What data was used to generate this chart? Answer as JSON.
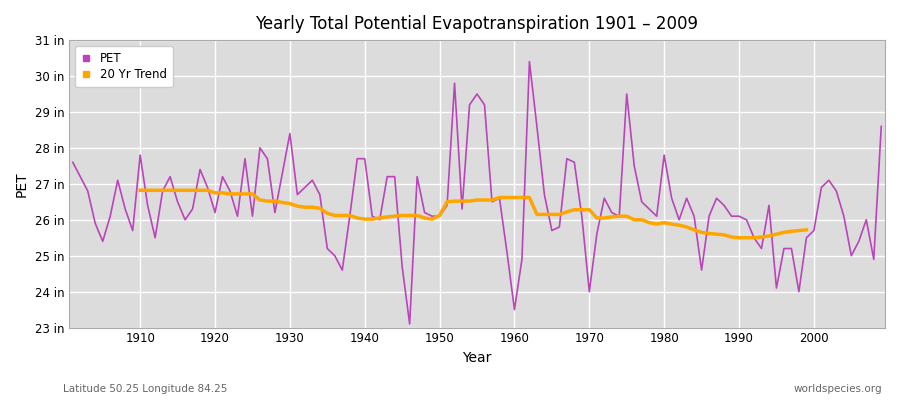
{
  "title": "Yearly Total Potential Evapotranspiration 1901 – 2009",
  "xlabel": "Year",
  "ylabel": "PET",
  "subtitle_left": "Latitude 50.25 Longitude 84.25",
  "subtitle_right": "worldspecies.org",
  "pet_color": "#BB44BB",
  "trend_color": "#FFA500",
  "fig_background_color": "#FFFFFF",
  "plot_background_color": "#DCDCDC",
  "grid_color": "#FFFFFF",
  "ylim_bottom": 23.0,
  "ylim_top": 31.0,
  "yticks": [
    23,
    24,
    25,
    26,
    27,
    28,
    29,
    30,
    31
  ],
  "ytick_labels": [
    "23 in",
    "24 in",
    "25 in",
    "26 in",
    "27 in",
    "28 in",
    "29 in",
    "30 in",
    "31 in"
  ],
  "xticks": [
    1910,
    1920,
    1930,
    1940,
    1950,
    1960,
    1970,
    1980,
    1990,
    2000
  ],
  "years": [
    1901,
    1902,
    1903,
    1904,
    1905,
    1906,
    1907,
    1908,
    1909,
    1910,
    1911,
    1912,
    1913,
    1914,
    1915,
    1916,
    1917,
    1918,
    1919,
    1920,
    1921,
    1922,
    1923,
    1924,
    1925,
    1926,
    1927,
    1928,
    1929,
    1930,
    1931,
    1932,
    1933,
    1934,
    1935,
    1936,
    1937,
    1938,
    1939,
    1940,
    1941,
    1942,
    1943,
    1944,
    1945,
    1946,
    1947,
    1948,
    1949,
    1950,
    1951,
    1952,
    1953,
    1954,
    1955,
    1956,
    1957,
    1958,
    1959,
    1960,
    1961,
    1962,
    1963,
    1964,
    1965,
    1966,
    1967,
    1968,
    1969,
    1970,
    1971,
    1972,
    1973,
    1974,
    1975,
    1976,
    1977,
    1978,
    1979,
    1980,
    1981,
    1982,
    1983,
    1984,
    1985,
    1986,
    1987,
    1988,
    1989,
    1990,
    1991,
    1992,
    1993,
    1994,
    1995,
    1996,
    1997,
    1998,
    1999,
    2000,
    2001,
    2002,
    2003,
    2004,
    2005,
    2006,
    2007,
    2008,
    2009
  ],
  "pet_values": [
    27.6,
    27.2,
    26.8,
    25.9,
    25.4,
    26.1,
    27.1,
    26.3,
    25.7,
    27.8,
    26.4,
    25.5,
    26.8,
    27.2,
    26.5,
    26.0,
    26.3,
    27.4,
    26.9,
    26.2,
    27.2,
    26.8,
    26.1,
    27.7,
    26.1,
    28.0,
    27.7,
    26.2,
    27.3,
    28.4,
    26.7,
    26.9,
    27.1,
    26.7,
    25.2,
    25.0,
    24.6,
    26.1,
    27.7,
    27.7,
    26.1,
    26.0,
    27.2,
    27.2,
    24.7,
    23.1,
    27.2,
    26.2,
    26.1,
    26.1,
    26.4,
    29.8,
    26.3,
    29.2,
    29.5,
    29.2,
    26.5,
    26.6,
    25.1,
    23.5,
    24.9,
    30.4,
    28.6,
    26.7,
    25.7,
    25.8,
    27.7,
    27.6,
    26.1,
    24.0,
    25.6,
    26.6,
    26.2,
    26.1,
    29.5,
    27.5,
    26.5,
    26.3,
    26.1,
    27.8,
    26.6,
    26.0,
    26.6,
    26.1,
    24.6,
    26.1,
    26.6,
    26.4,
    26.1,
    26.1,
    26.0,
    25.5,
    25.2,
    26.4,
    24.1,
    25.2,
    25.2,
    24.0,
    25.5,
    25.7,
    26.9,
    27.1,
    26.8,
    26.1,
    25.0,
    25.4,
    26.0,
    24.9,
    28.6
  ],
  "trend_years": [
    1910,
    1911,
    1912,
    1913,
    1914,
    1915,
    1916,
    1917,
    1918,
    1919,
    1920,
    1921,
    1922,
    1923,
    1924,
    1925,
    1926,
    1927,
    1928,
    1929,
    1930,
    1931,
    1932,
    1933,
    1934,
    1935,
    1936,
    1937,
    1938,
    1939,
    1940,
    1941,
    1942,
    1943,
    1944,
    1945,
    1946,
    1947,
    1948,
    1949,
    1950,
    1951,
    1952,
    1953,
    1954,
    1955,
    1956,
    1957,
    1958,
    1959,
    1960,
    1961,
    1962,
    1963,
    1964,
    1965,
    1966,
    1967,
    1968,
    1969,
    1970,
    1971,
    1972,
    1973,
    1974,
    1975,
    1976,
    1977,
    1978,
    1979,
    1980,
    1981,
    1982,
    1983,
    1984,
    1985,
    1986,
    1987,
    1988,
    1989,
    1990,
    1991,
    1992,
    1993,
    1994,
    1995,
    1996,
    1997,
    1998,
    1999
  ],
  "trend_values": [
    26.82,
    26.82,
    26.82,
    26.82,
    26.82,
    26.82,
    26.82,
    26.82,
    26.82,
    26.82,
    26.75,
    26.75,
    26.72,
    26.72,
    26.72,
    26.72,
    26.55,
    26.52,
    26.52,
    26.48,
    26.45,
    26.38,
    26.35,
    26.35,
    26.32,
    26.18,
    26.12,
    26.12,
    26.12,
    26.05,
    26.02,
    26.02,
    26.05,
    26.08,
    26.1,
    26.12,
    26.12,
    26.12,
    26.05,
    26.02,
    26.12,
    26.5,
    26.52,
    26.52,
    26.52,
    26.55,
    26.55,
    26.55,
    26.62,
    26.62,
    26.62,
    26.62,
    26.62,
    26.15,
    26.15,
    26.15,
    26.15,
    26.22,
    26.28,
    26.28,
    26.28,
    26.05,
    26.05,
    26.08,
    26.1,
    26.1,
    26.0,
    26.0,
    25.92,
    25.88,
    25.92,
    25.88,
    25.85,
    25.8,
    25.72,
    25.65,
    25.62,
    25.6,
    25.58,
    25.52,
    25.5,
    25.5,
    25.5,
    25.52,
    25.55,
    25.6,
    25.65,
    25.68,
    25.7,
    25.72
  ]
}
